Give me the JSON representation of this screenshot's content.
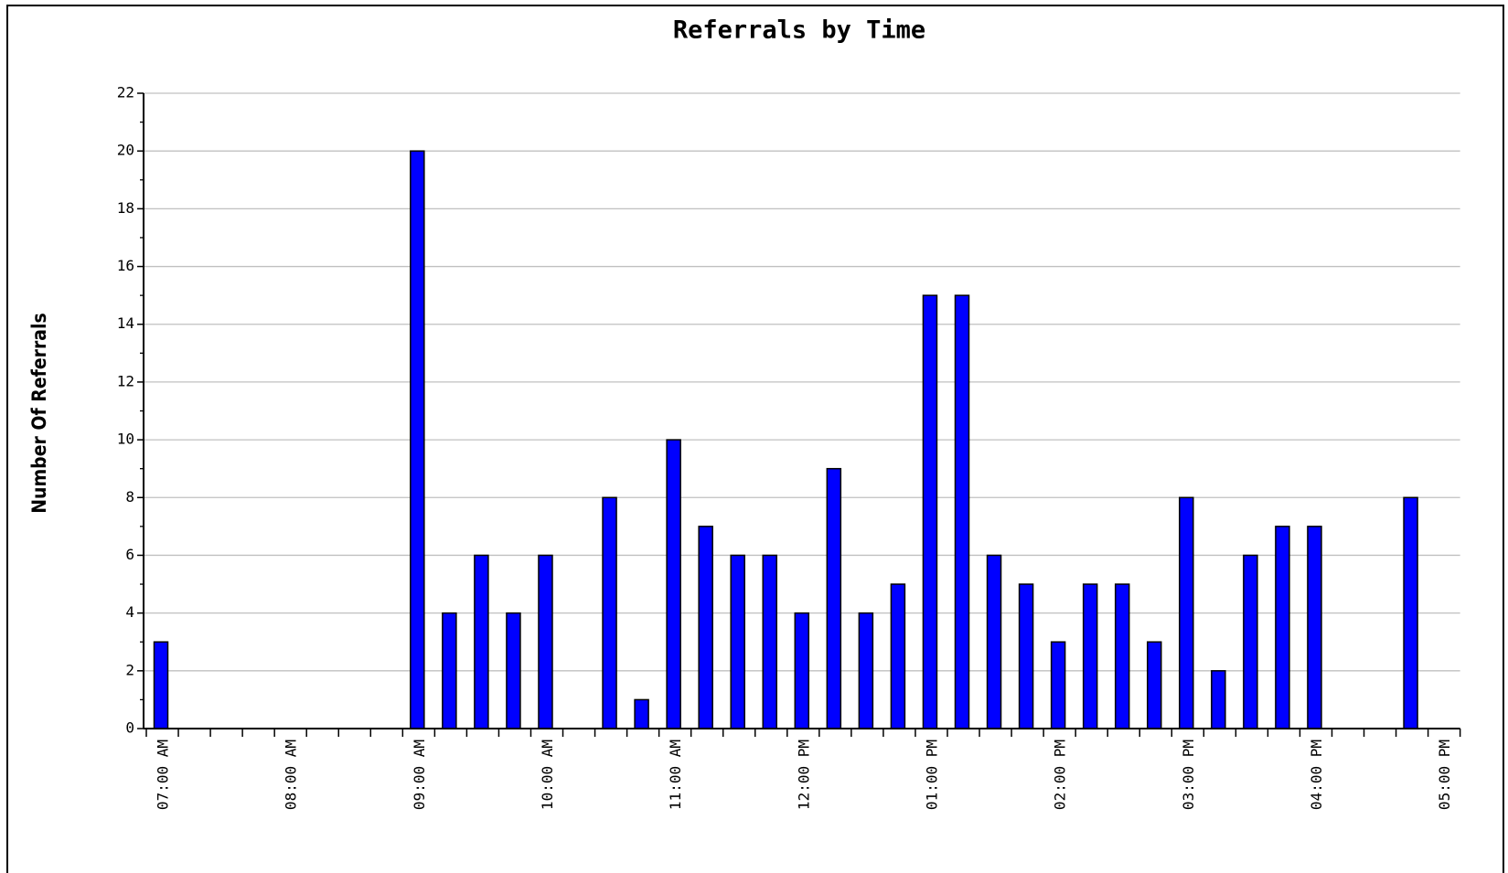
{
  "chart_data": {
    "type": "bar",
    "title": "Referrals by Time",
    "y_label": "Number Of Referrals",
    "categories": [
      "07:00 AM",
      null,
      null,
      null,
      "08:00 AM",
      null,
      null,
      null,
      "09:00 AM",
      null,
      null,
      null,
      "10:00 AM",
      null,
      null,
      null,
      "11:00 AM",
      null,
      null,
      null,
      "12:00 PM",
      null,
      null,
      null,
      "01:00 PM",
      null,
      null,
      null,
      "02:00 PM",
      null,
      null,
      null,
      "03:00 PM",
      null,
      null,
      null,
      "04:00 PM",
      null,
      null,
      null,
      "05:00 PM"
    ],
    "values": [
      3,
      0,
      0,
      0,
      0,
      0,
      0,
      0,
      20,
      4,
      6,
      4,
      6,
      0,
      8,
      1,
      10,
      7,
      6,
      6,
      4,
      9,
      4,
      5,
      15,
      15,
      6,
      5,
      3,
      5,
      5,
      3,
      8,
      2,
      6,
      7,
      7,
      0,
      0,
      8,
      0
    ],
    "color": "#0000ff",
    "ylim": [
      0,
      22
    ],
    "yticks": [
      0,
      2,
      4,
      6,
      8,
      10,
      12,
      14,
      16,
      18,
      20,
      22
    ],
    "grid": true
  }
}
